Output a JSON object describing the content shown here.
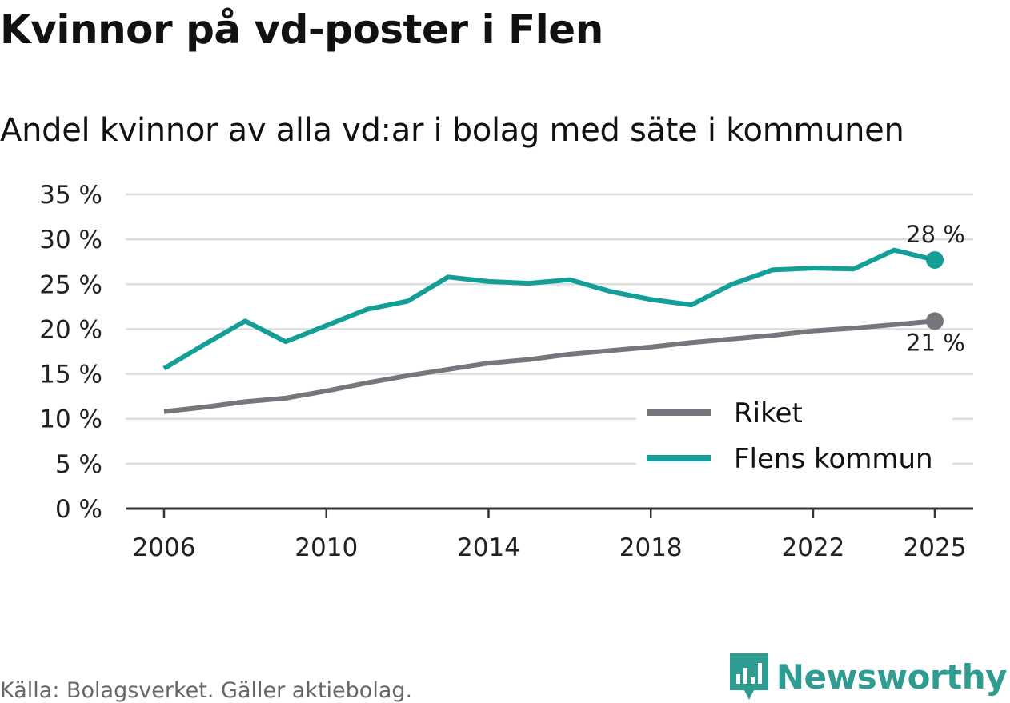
{
  "title": "Kvinnor på vd-poster i Flen",
  "subtitle": "Andel kvinnor av alla vd:ar i bolag med säte i kommunen",
  "source": "Källa: Bolagsverket. Gäller aktiebolag.",
  "brand": "Newsworthy",
  "colors": {
    "riket": "#77767c",
    "flen": "#139f98",
    "grid": "#dddddd",
    "axis": "#333333",
    "brand": "#2e9c91"
  },
  "chart_data": {
    "type": "line",
    "title": "Kvinnor på vd-poster i Flen",
    "xlabel": "",
    "ylabel": "",
    "x": [
      2006,
      2007,
      2008,
      2009,
      2010,
      2011,
      2012,
      2013,
      2014,
      2015,
      2016,
      2017,
      2018,
      2019,
      2020,
      2021,
      2022,
      2023,
      2024,
      2025
    ],
    "xlim": [
      2006,
      2025
    ],
    "ylim": [
      0,
      35
    ],
    "y_ticks": [
      "0 %",
      "5 %",
      "10 %",
      "15 %",
      "20 %",
      "25 %",
      "30 %",
      "35 %"
    ],
    "y_tick_values": [
      0,
      5,
      10,
      15,
      20,
      25,
      30,
      35
    ],
    "x_ticks": [
      "2006",
      "2010",
      "2014",
      "2018",
      "2022",
      "2025"
    ],
    "x_tick_values": [
      2006,
      2010,
      2014,
      2018,
      2022,
      2025
    ],
    "grid": true,
    "legend_position": "bottom-right",
    "series": [
      {
        "name": "Riket",
        "key": "riket",
        "values": [
          10.8,
          11.3,
          11.9,
          12.3,
          13.1,
          14.0,
          14.8,
          15.5,
          16.2,
          16.6,
          17.2,
          17.6,
          18.0,
          18.5,
          18.9,
          19.3,
          19.8,
          20.1,
          20.5,
          20.9
        ],
        "end_label": "21 %"
      },
      {
        "name": "Flens kommun",
        "key": "flen",
        "values": [
          15.6,
          18.3,
          20.9,
          18.6,
          20.4,
          22.2,
          23.1,
          25.8,
          25.3,
          25.1,
          25.5,
          24.2,
          23.3,
          22.7,
          25.0,
          26.6,
          26.8,
          26.7,
          28.8,
          27.7
        ],
        "end_label": "28 %"
      }
    ]
  }
}
